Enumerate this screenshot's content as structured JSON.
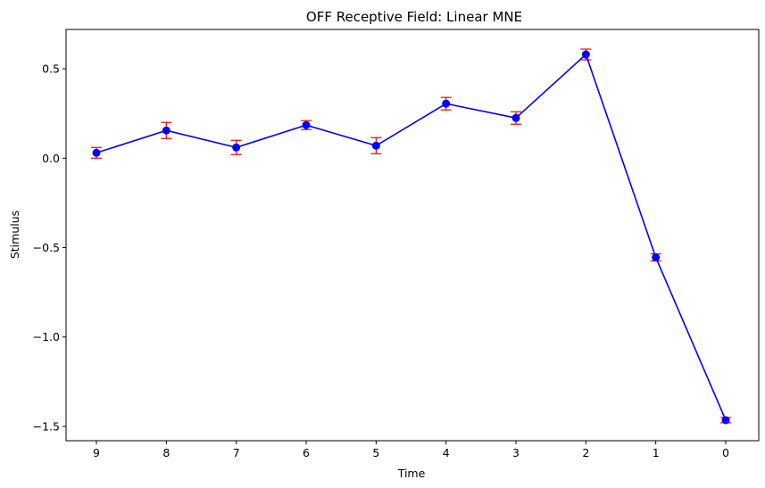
{
  "chart_data": {
    "type": "line",
    "title": "OFF Receptive Field: Linear MNE",
    "xlabel": "Time",
    "ylabel": "Stimulus",
    "categories": [
      "9",
      "8",
      "7",
      "6",
      "5",
      "4",
      "3",
      "2",
      "1",
      "0"
    ],
    "yticks": [
      0.5,
      0.0,
      -0.5,
      -1.0,
      -1.5
    ],
    "ytick_labels": [
      "0.5",
      "0.0",
      "−0.5",
      "−1.0",
      "−1.5"
    ],
    "ylim": [
      -1.58,
      0.72
    ],
    "grid": false,
    "series": [
      {
        "values": [
          0.03,
          0.155,
          0.06,
          0.185,
          0.07,
          0.305,
          0.225,
          0.58,
          -0.555,
          -1.465
        ],
        "errors": [
          0.03,
          0.045,
          0.04,
          0.025,
          0.045,
          0.035,
          0.035,
          0.03,
          0.02,
          0.015
        ],
        "line_color": "#0000ff",
        "marker_color": "#0000ff",
        "error_color": "#ff0000"
      }
    ]
  }
}
